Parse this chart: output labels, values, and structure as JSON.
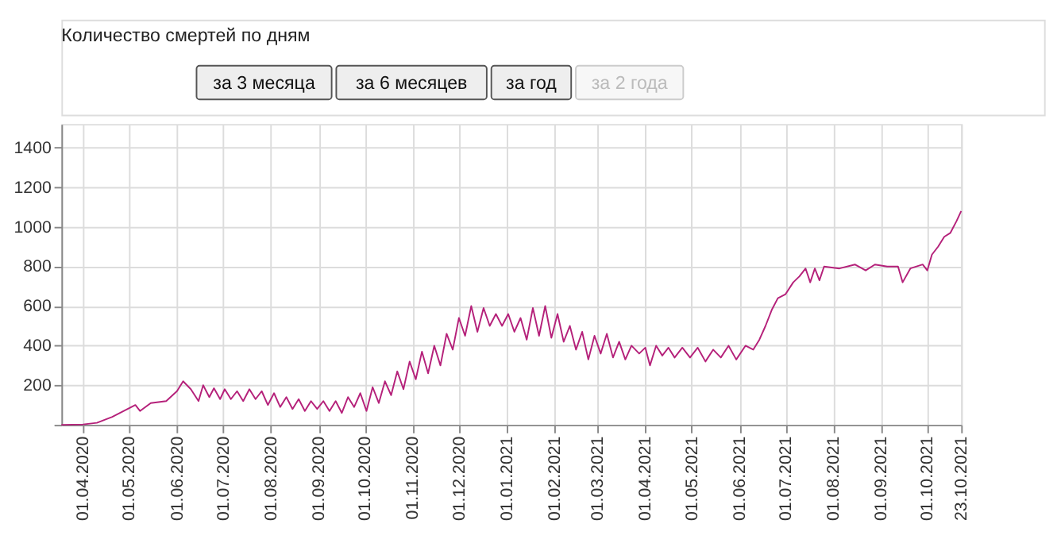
{
  "chart_data": {
    "type": "line",
    "title": "Количество смертей по дням",
    "annotations": [
      "за 3 месяца",
      "за 6 месяцев",
      "за год",
      "за 2 года"
    ],
    "x": [
      "2020-03-18",
      "2020-04-01",
      "2020-04-10",
      "2020-04-20",
      "2020-04-30",
      "2020-05-05",
      "2020-05-08",
      "2020-05-15",
      "2020-05-25",
      "2020-06-01",
      "2020-06-05",
      "2020-06-10",
      "2020-06-15",
      "2020-06-18",
      "2020-06-22",
      "2020-06-25",
      "2020-06-29",
      "2020-07-02",
      "2020-07-06",
      "2020-07-10",
      "2020-07-14",
      "2020-07-18",
      "2020-07-22",
      "2020-07-26",
      "2020-07-30",
      "2020-08-03",
      "2020-08-07",
      "2020-08-11",
      "2020-08-15",
      "2020-08-19",
      "2020-08-23",
      "2020-08-27",
      "2020-08-31",
      "2020-09-04",
      "2020-09-08",
      "2020-09-12",
      "2020-09-16",
      "2020-09-20",
      "2020-09-24",
      "2020-09-28",
      "2020-10-02",
      "2020-10-06",
      "2020-10-10",
      "2020-10-14",
      "2020-10-18",
      "2020-10-22",
      "2020-10-26",
      "2020-10-30",
      "2020-11-03",
      "2020-11-07",
      "2020-11-11",
      "2020-11-15",
      "2020-11-19",
      "2020-11-23",
      "2020-11-27",
      "2020-12-01",
      "2020-12-05",
      "2020-12-09",
      "2020-12-13",
      "2020-12-17",
      "2020-12-21",
      "2020-12-25",
      "2020-12-29",
      "2021-01-02",
      "2021-01-06",
      "2021-01-10",
      "2021-01-14",
      "2021-01-18",
      "2021-01-22",
      "2021-01-26",
      "2021-01-30",
      "2021-02-03",
      "2021-02-07",
      "2021-02-11",
      "2021-02-15",
      "2021-02-19",
      "2021-02-23",
      "2021-02-27",
      "2021-03-03",
      "2021-03-07",
      "2021-03-11",
      "2021-03-15",
      "2021-03-19",
      "2021-03-23",
      "2021-03-28",
      "2021-04-01",
      "2021-04-04",
      "2021-04-08",
      "2021-04-12",
      "2021-04-16",
      "2021-04-20",
      "2021-04-25",
      "2021-04-30",
      "2021-05-05",
      "2021-05-10",
      "2021-05-15",
      "2021-05-20",
      "2021-05-25",
      "2021-05-30",
      "2021-06-05",
      "2021-06-10",
      "2021-06-14",
      "2021-06-18",
      "2021-06-22",
      "2021-06-26",
      "2021-07-01",
      "2021-07-06",
      "2021-07-10",
      "2021-07-14",
      "2021-07-17",
      "2021-07-20",
      "2021-07-23",
      "2021-07-26",
      "2021-08-05",
      "2021-08-15",
      "2021-08-22",
      "2021-08-28",
      "2021-09-05",
      "2021-09-12",
      "2021-09-15",
      "2021-09-20",
      "2021-09-28",
      "2021-10-01",
      "2021-10-04",
      "2021-10-08",
      "2021-10-12",
      "2021-10-16",
      "2021-10-20",
      "2021-10-23"
    ],
    "series": [
      {
        "color": "#b5217a",
        "values": [
          0,
          2,
          10,
          40,
          80,
          100,
          70,
          110,
          120,
          170,
          220,
          180,
          120,
          200,
          140,
          185,
          130,
          180,
          130,
          170,
          120,
          180,
          130,
          170,
          100,
          160,
          90,
          140,
          80,
          130,
          70,
          120,
          80,
          120,
          70,
          120,
          60,
          140,
          90,
          160,
          70,
          190,
          110,
          220,
          150,
          270,
          180,
          320,
          230,
          370,
          260,
          400,
          300,
          460,
          380,
          540,
          450,
          600,
          470,
          590,
          500,
          560,
          500,
          560,
          470,
          540,
          430,
          590,
          450,
          600,
          440,
          560,
          420,
          500,
          380,
          470,
          330,
          450,
          360,
          460,
          340,
          420,
          330,
          400,
          360,
          390,
          300,
          400,
          350,
          390,
          340,
          390,
          340,
          390,
          320,
          380,
          340,
          400,
          330,
          400,
          380,
          430,
          500,
          580,
          640,
          660,
          720,
          750,
          790,
          720,
          790,
          730,
          800,
          790,
          810,
          780,
          810,
          800,
          800,
          720,
          790,
          810,
          780,
          860,
          900,
          950,
          970,
          1030,
          1080
        ]
      }
    ],
    "xlim": [
      "2020-03-18",
      "2021-10-23"
    ],
    "xticks": [
      {
        "value": "2020-04-01",
        "label": "01.04.2020"
      },
      {
        "value": "2020-05-01",
        "label": "01.05.2020"
      },
      {
        "value": "2020-06-01",
        "label": "01.06.2020"
      },
      {
        "value": "2020-07-01",
        "label": "01.07.2020"
      },
      {
        "value": "2020-08-01",
        "label": "01.08.2020"
      },
      {
        "value": "2020-09-01",
        "label": "01.09.2020"
      },
      {
        "value": "2020-10-01",
        "label": "01.10.2020"
      },
      {
        "value": "2020-11-01",
        "label": "01.11.2020"
      },
      {
        "value": "2020-12-01",
        "label": "01.12.2020"
      },
      {
        "value": "2021-01-01",
        "label": "01.01.2021"
      },
      {
        "value": "2021-02-01",
        "label": "01.02.2021"
      },
      {
        "value": "2021-03-01",
        "label": "01.03.2021"
      },
      {
        "value": "2021-04-01",
        "label": "01.04.2021"
      },
      {
        "value": "2021-05-01",
        "label": "01.05.2021"
      },
      {
        "value": "2021-06-01",
        "label": "01.06.2021"
      },
      {
        "value": "2021-07-01",
        "label": "01.07.2021"
      },
      {
        "value": "2021-08-01",
        "label": "01.08.2021"
      },
      {
        "value": "2021-09-01",
        "label": "01.09.2021"
      },
      {
        "value": "2021-10-01",
        "label": "01.10.2021"
      },
      {
        "value": "2021-10-23",
        "label": "23.10.2021"
      }
    ],
    "ylim": [
      0,
      1520
    ],
    "yticks": [
      {
        "value": 0,
        "label": null
      },
      200,
      400,
      600,
      800,
      1000,
      1200,
      1400
    ],
    "grid": true,
    "marker": "none",
    "line_style": "solid"
  }
}
